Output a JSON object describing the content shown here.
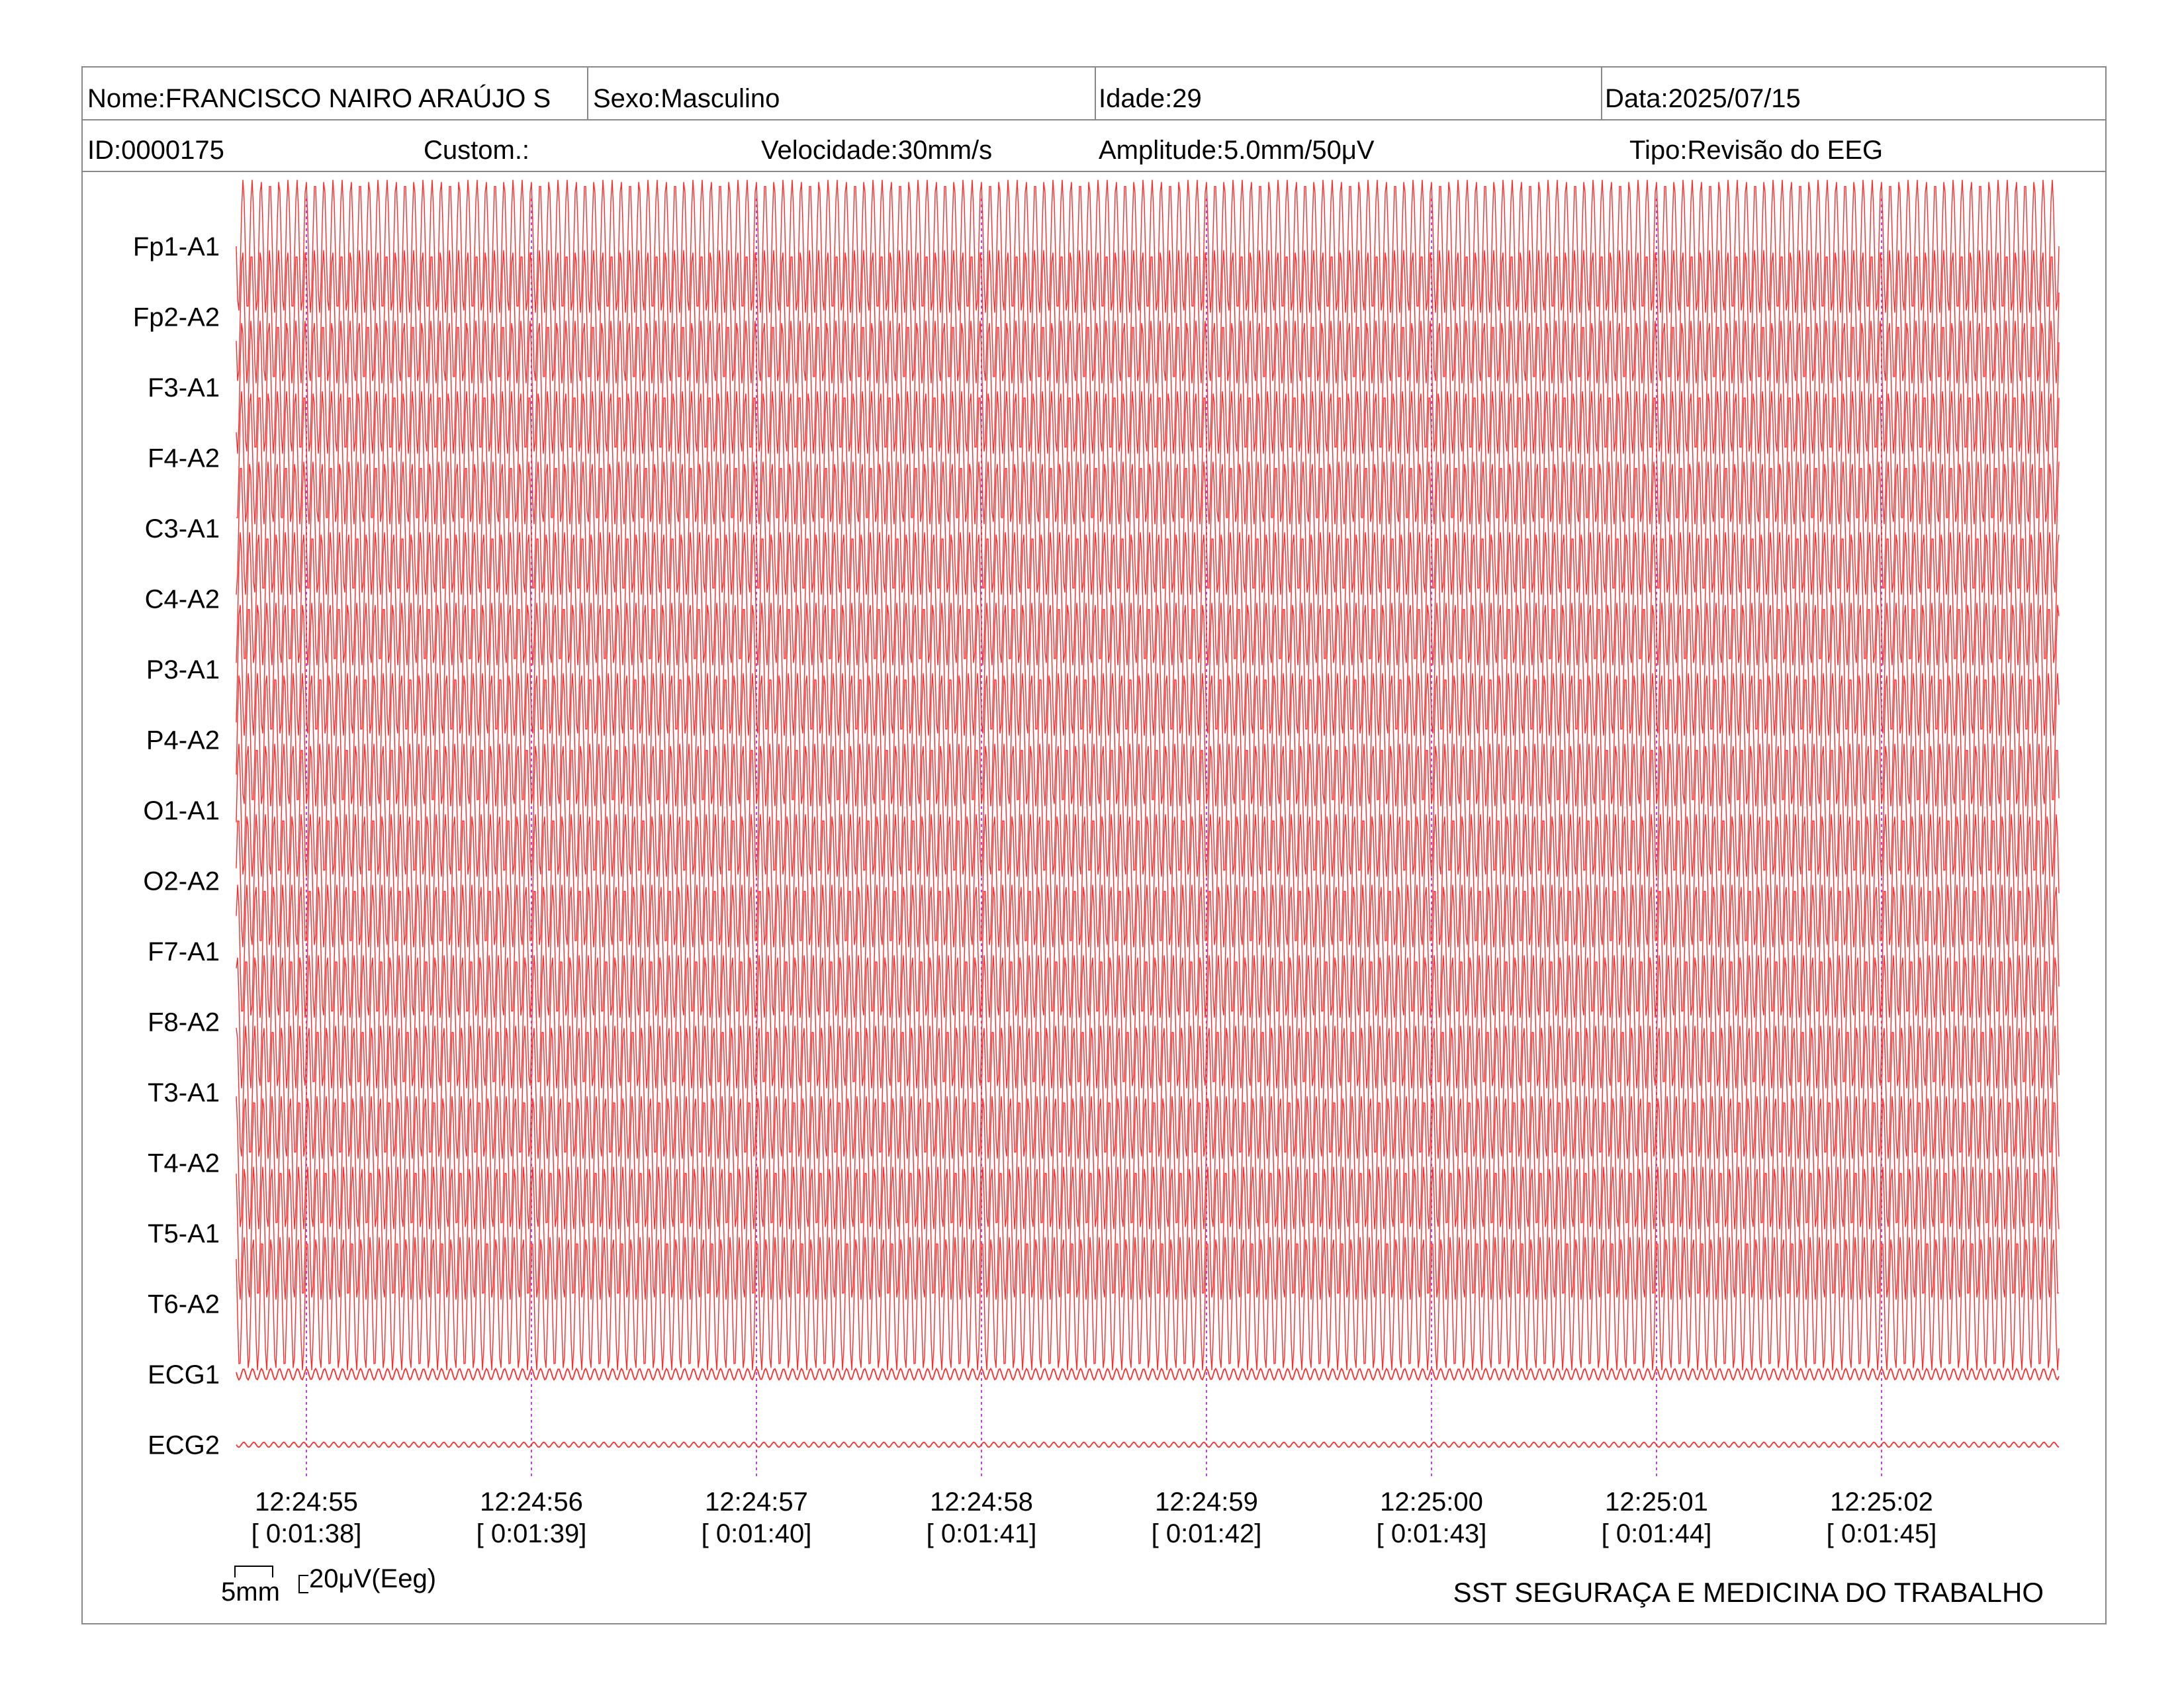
{
  "header": {
    "name": "Nome:FRANCISCO NAIRO ARAÚJO S",
    "sex": "Sexo:Masculino",
    "age": "Idade:29",
    "date": "Data:2025/07/15",
    "id": "ID:0000175",
    "custom": "Custom.:",
    "speed": "Velocidade:30mm/s",
    "amplitude": "Amplitude:5.0mm/50μV",
    "type": "Tipo:Revisão do EEG"
  },
  "footer": {
    "organization": "SST SEGURAÇA E MEDICINA DO TRABALHO",
    "scale_time": "5mm",
    "scale_amplitude": "20μV(Eeg)"
  },
  "colors": {
    "trace": "#ff2a2a",
    "marker": "#c040e0",
    "frame": "#888888"
  },
  "chart_data": {
    "type": "line",
    "channels": [
      "Fp1-A1",
      "Fp2-A2",
      "F3-A1",
      "F4-A2",
      "C3-A1",
      "C4-A2",
      "P3-A1",
      "P4-A2",
      "O1-A1",
      "O2-A2",
      "F7-A1",
      "F8-A2",
      "T3-A1",
      "T4-A2",
      "T5-A1",
      "T6-A2",
      "ECG1",
      "ECG2"
    ],
    "time_ticks": [
      {
        "time": "12:24:55",
        "elapsed": "[ 0:01:38]"
      },
      {
        "time": "12:24:56",
        "elapsed": "[ 0:01:39]"
      },
      {
        "time": "12:24:57",
        "elapsed": "[ 0:01:40]"
      },
      {
        "time": "12:24:58",
        "elapsed": "[ 0:01:41]"
      },
      {
        "time": "12:24:59",
        "elapsed": "[ 0:01:42]"
      },
      {
        "time": "12:25:00",
        "elapsed": "[ 0:01:43]"
      },
      {
        "time": "12:25:01",
        "elapsed": "[ 0:01:44]"
      },
      {
        "time": "12:25:02",
        "elapsed": "[ 0:01:45]"
      }
    ],
    "cycles_per_second": 25,
    "eeg_amplitude_uv": 180,
    "ecg_amplitude_uv": 15,
    "grid": false,
    "legend": "none"
  }
}
